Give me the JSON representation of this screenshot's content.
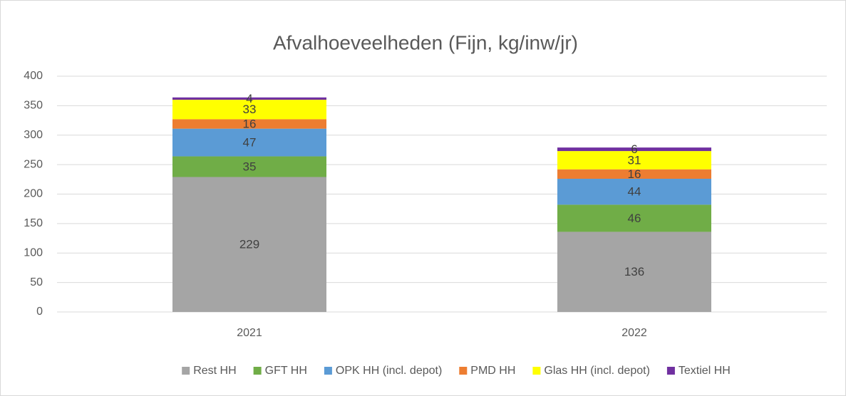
{
  "chart_data": {
    "type": "stacked_bar",
    "title": "Afvalhoeveelheden (Fijn, kg/inw/jr)",
    "categories": [
      "2021",
      "2022"
    ],
    "series": [
      {
        "name": "Rest HH",
        "color": "#a5a5a5",
        "values": [
          229,
          136
        ]
      },
      {
        "name": "GFT HH",
        "color": "#70ad47",
        "values": [
          35,
          46
        ]
      },
      {
        "name": "OPK HH (incl. depot)",
        "color": "#5b9bd5",
        "values": [
          47,
          44
        ]
      },
      {
        "name": "PMD HH",
        "color": "#ed7d31",
        "values": [
          16,
          16
        ]
      },
      {
        "name": "Glas HH (incl. depot)",
        "color": "#ffff00",
        "values": [
          33,
          31
        ]
      },
      {
        "name": "Textiel HH",
        "color": "#7030a0",
        "values": [
          4,
          6
        ]
      }
    ],
    "ylim": [
      0,
      400
    ],
    "yticks": [
      0,
      50,
      100,
      150,
      200,
      250,
      300,
      350,
      400
    ],
    "grid": true,
    "legend": "bottom"
  }
}
